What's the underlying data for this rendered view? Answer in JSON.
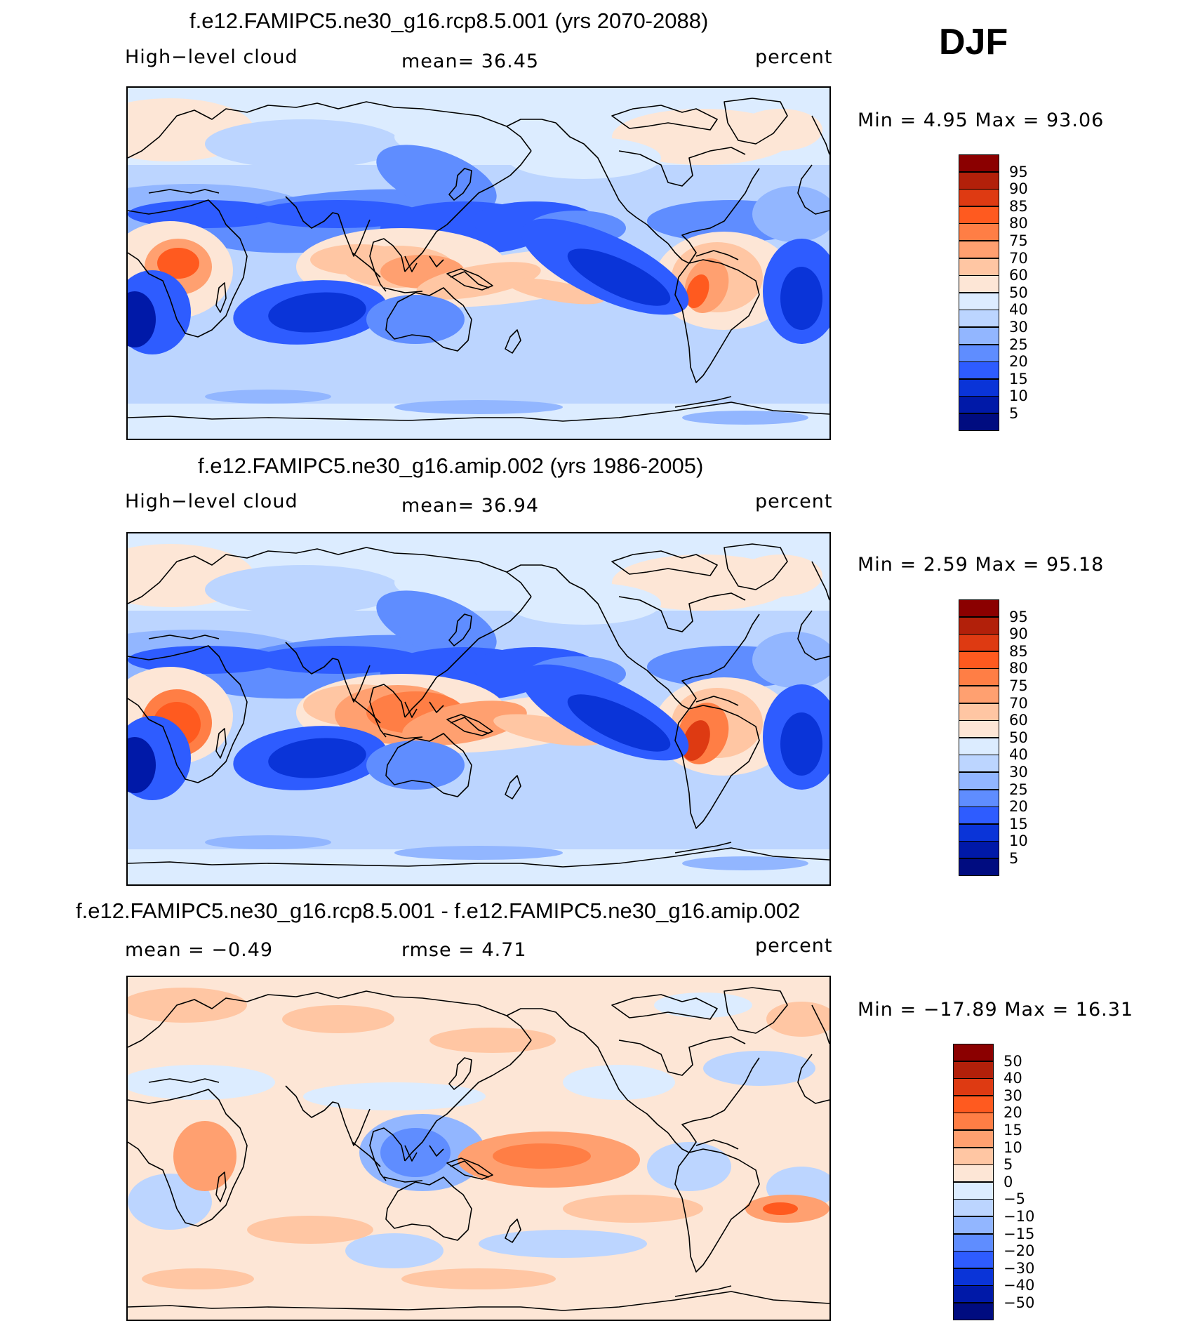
{
  "season": "DJF",
  "units": "percent",
  "variable": "High−level cloud",
  "panels": [
    {
      "id": "rcp85",
      "title": "f.e12.FAMIPC5.ne30_g16.rcp8.5.001 (yrs 2070-2088)",
      "left_label": "High−level cloud",
      "center_label": "mean=   36.45",
      "right_label": "percent",
      "minmax": "Min =     4.95  Max =    93.06"
    },
    {
      "id": "amip",
      "title": "f.e12.FAMIPC5.ne30_g16.amip.002 (yrs 1986-2005)",
      "left_label": "High−level cloud",
      "center_label": "mean=   36.94",
      "right_label": "percent",
      "minmax": "Min =     2.59  Max =    95.18"
    },
    {
      "id": "diff",
      "title": "f.e12.FAMIPC5.ne30_g16.rcp8.5.001 - f.e12.FAMIPC5.ne30_g16.amip.002",
      "left_label": "mean  =   −0.49",
      "center_label": "rmse  =     4.71",
      "right_label": "percent",
      "minmax": "Min = −17.89  Max =    16.31"
    }
  ],
  "colorbars": {
    "field": {
      "ticks": [
        "95",
        "90",
        "85",
        "80",
        "75",
        "70",
        "60",
        "50",
        "40",
        "30",
        "25",
        "20",
        "15",
        "10",
        "5"
      ],
      "colors": [
        "#8b0000",
        "#b2200a",
        "#de3a12",
        "#ff5a1f",
        "#ff7e45",
        "#ffa070",
        "#ffc6a3",
        "#fde6d6",
        "#dcecff",
        "#bcd5ff",
        "#92b6ff",
        "#5f8dff",
        "#2e5cff",
        "#0a34d8",
        "#0019a8",
        "#000c80"
      ]
    },
    "diff": {
      "ticks": [
        "50",
        "40",
        "30",
        "20",
        "15",
        "10",
        "5",
        "0",
        "−5",
        "−10",
        "−15",
        "−20",
        "−30",
        "−40",
        "−50"
      ],
      "colors": [
        "#8b0000",
        "#b2200a",
        "#de3a12",
        "#ff5a1f",
        "#ff7e45",
        "#ffa070",
        "#ffc6a3",
        "#fde6d6",
        "#dcecff",
        "#bcd5ff",
        "#92b6ff",
        "#5f8dff",
        "#2e5cff",
        "#0a34d8",
        "#0019a8",
        "#000c80"
      ]
    }
  },
  "colors": {
    "ocean_base": "#c2d8ff",
    "coast": "#000000"
  }
}
